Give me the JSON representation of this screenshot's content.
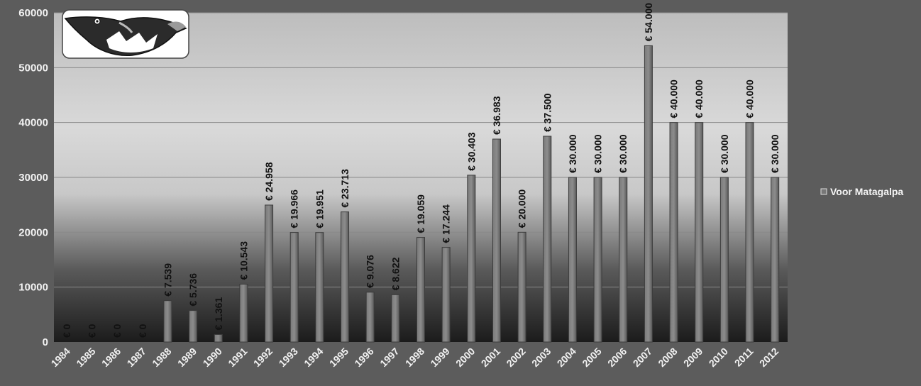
{
  "chart_data": {
    "type": "bar",
    "categories": [
      "1984",
      "1985",
      "1986",
      "1987",
      "1988",
      "1989",
      "1990",
      "1991",
      "1992",
      "1993",
      "1994",
      "1995",
      "1996",
      "1997",
      "1998",
      "1999",
      "2000",
      "2001",
      "2002",
      "2003",
      "2004",
      "2005",
      "2006",
      "2007",
      "2008",
      "2009",
      "2010",
      "2011",
      "2012"
    ],
    "series": [
      {
        "name": "Voor Matagalpa",
        "values": [
          0,
          0,
          0,
          0,
          7539,
          5736,
          1361,
          10543,
          24958,
          19966,
          19951,
          23713,
          9076,
          8622,
          19059,
          17244,
          30403,
          36983,
          20000,
          37500,
          30000,
          30000,
          30000,
          54000,
          40000,
          40000,
          30000,
          40000,
          30000
        ],
        "labels": [
          "€ 0",
          "€ 0",
          "€ 0",
          "€ 0",
          "€ 7.539",
          "€ 5.736",
          "€ 1.361",
          "€ 10.543",
          "€ 24.958",
          "€ 19.966",
          "€ 19.951",
          "€ 23.713",
          "€ 9.076",
          "€ 8.622",
          "€ 19.059",
          "€ 17.244",
          "€ 30.403",
          "€ 36.983",
          "€ 20.000",
          "€ 37.500",
          "€ 30.000",
          "€ 30.000",
          "€ 30.000",
          "€ 54.000",
          "€ 40.000",
          "€ 40.000",
          "€ 30.000",
          "€ 40.000",
          "€ 30.000"
        ]
      }
    ],
    "title": "",
    "xlabel": "",
    "ylabel": "",
    "ylim": [
      0,
      60000
    ],
    "yticks": [
      "0",
      "10000",
      "20000",
      "30000",
      "40000",
      "50000",
      "60000"
    ],
    "grid": true,
    "legend_position": "right",
    "colors": {
      "bar": "#6e6e6e",
      "bar_edge": "#3c3c3c",
      "grid": "#8a8a8a"
    }
  },
  "logo": {
    "icon": "bird-logo-icon"
  }
}
